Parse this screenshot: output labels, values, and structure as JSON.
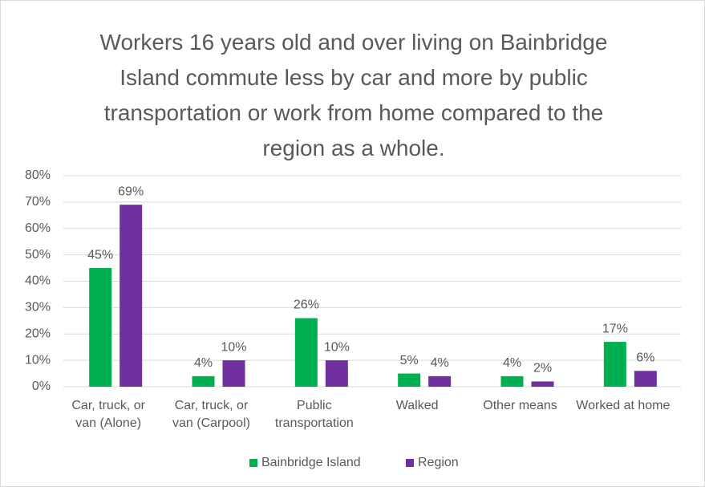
{
  "chart_data": {
    "type": "bar",
    "title": "Workers 16 years old and over living on Bainbridge Island commute less by car and more by public transportation or work from home compared to the region as a whole.",
    "categories": [
      "Car, truck, or van (Alone)",
      "Car, truck, or van (Carpool)",
      "Public transportation",
      "Walked",
      "Other means",
      "Worked at home"
    ],
    "series": [
      {
        "name": "Bainbridge Island",
        "color": "#00b050",
        "values": [
          45,
          4,
          26,
          5,
          4,
          17
        ],
        "value_labels": [
          "45%",
          "4%",
          "26%",
          "5%",
          "4%",
          "17%"
        ]
      },
      {
        "name": "Region",
        "color": "#7030a0",
        "values": [
          69,
          10,
          10,
          4,
          2,
          6
        ],
        "value_labels": [
          "69%",
          "10%",
          "10%",
          "4%",
          "2%",
          "6%"
        ]
      }
    ],
    "ylim": [
      0,
      80
    ],
    "yticks": [
      {
        "value": 0,
        "label": "0%"
      },
      {
        "value": 10,
        "label": "10%"
      },
      {
        "value": 20,
        "label": "20%"
      },
      {
        "value": 30,
        "label": "30%"
      },
      {
        "value": 40,
        "label": "40%"
      },
      {
        "value": 50,
        "label": "50%"
      },
      {
        "value": 60,
        "label": "60%"
      },
      {
        "value": 70,
        "label": "70%"
      },
      {
        "value": 80,
        "label": "80%"
      }
    ],
    "grid": true,
    "legend": "bottom"
  }
}
